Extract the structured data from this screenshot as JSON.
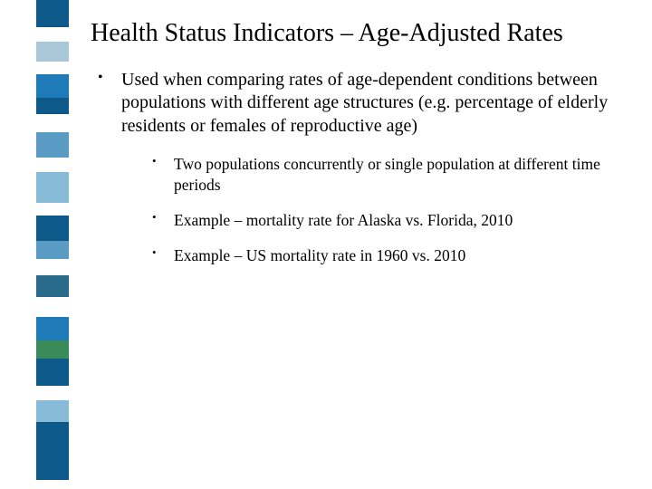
{
  "title": "Health Status Indicators – Age-Adjusted Rates",
  "bullets": {
    "main": "Used when comparing rates of age-dependent conditions between populations with different age structures (e.g. percentage of elderly residents or females of reproductive age)",
    "sub": [
      "Two populations concurrently or single population at different time periods",
      "Example – mortality rate for Alaska vs. Florida, 2010",
      "Example – US mortality rate in 1960 vs. 2010"
    ]
  },
  "sidebar": {
    "blocks": [
      {
        "color": "#0d5a8a",
        "height": 30
      },
      {
        "color": "#ffffff",
        "height": 16
      },
      {
        "color": "#a8c8d8",
        "height": 22
      },
      {
        "color": "#ffffff",
        "height": 14
      },
      {
        "color": "#1e7bb8",
        "height": 26
      },
      {
        "color": "#0d5a8a",
        "height": 18
      },
      {
        "color": "#ffffff",
        "height": 20
      },
      {
        "color": "#5a9bc4",
        "height": 28
      },
      {
        "color": "#ffffff",
        "height": 16
      },
      {
        "color": "#88bbd8",
        "height": 34
      },
      {
        "color": "#ffffff",
        "height": 14
      },
      {
        "color": "#0d5a8a",
        "height": 28
      },
      {
        "color": "#5a9bc4",
        "height": 20
      },
      {
        "color": "#ffffff",
        "height": 18
      },
      {
        "color": "#2a6a8a",
        "height": 24
      },
      {
        "color": "#ffffff",
        "height": 22
      },
      {
        "color": "#1e7bb8",
        "height": 26
      },
      {
        "color": "#3a8a5a",
        "height": 20
      },
      {
        "color": "#0d5a8a",
        "height": 30
      },
      {
        "color": "#ffffff",
        "height": 16
      },
      {
        "color": "#88bbd8",
        "height": 24
      },
      {
        "color": "#0d5a8a",
        "height": 64
      }
    ]
  },
  "typography": {
    "title_fontsize": 28,
    "body_fontsize": 20,
    "sub_fontsize": 17.5,
    "font_family": "Georgia, serif",
    "text_color": "#000000",
    "background_color": "#ffffff"
  }
}
